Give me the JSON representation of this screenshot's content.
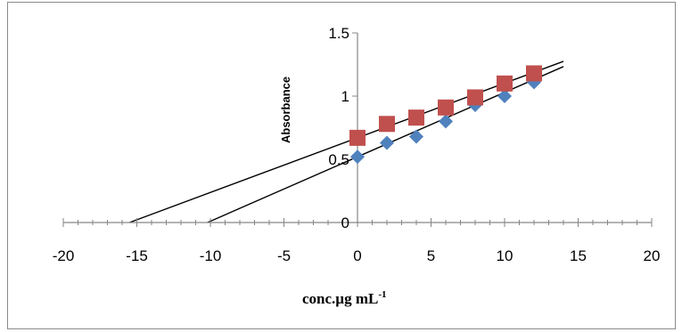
{
  "chart_data": {
    "type": "scatter",
    "title": "",
    "xlabel": "conc.µg mL",
    "xlabel_superscript": "-1",
    "ylabel": "Absorbance",
    "xlim": [
      -20,
      20
    ],
    "ylim": [
      0,
      1.5
    ],
    "x_ticks": [
      "-20",
      "-15",
      "-10",
      "-5",
      "0",
      "5",
      "10",
      "15",
      "20"
    ],
    "y_ticks": [
      "0",
      "0.5",
      "1",
      "1.5"
    ],
    "x_tick_values": [
      -20,
      -15,
      -10,
      -5,
      0,
      5,
      10,
      15,
      20
    ],
    "y_tick_values": [
      0,
      0.5,
      1,
      1.5
    ],
    "axes_cross_at_x": 0,
    "grid": false,
    "legend": "none",
    "series": [
      {
        "marker": "diamond",
        "color": "#4f81bd",
        "points": [
          [
            0,
            0.52
          ],
          [
            2,
            0.63
          ],
          [
            4,
            0.68
          ],
          [
            6,
            0.8
          ],
          [
            8,
            0.93
          ],
          [
            10,
            1.0
          ],
          [
            12,
            1.11
          ]
        ],
        "trendline": {
          "intercept_x": -10.2,
          "intercept_y": 0.52,
          "x_end": 14
        }
      },
      {
        "marker": "square",
        "color": "#c0504d",
        "points": [
          [
            0,
            0.67
          ],
          [
            2,
            0.78
          ],
          [
            4,
            0.83
          ],
          [
            6,
            0.91
          ],
          [
            8,
            0.99
          ],
          [
            10,
            1.1
          ],
          [
            12,
            1.18
          ]
        ],
        "trendline": {
          "intercept_x": -15.5,
          "intercept_y": 0.67,
          "x_end": 14
        }
      }
    ]
  }
}
